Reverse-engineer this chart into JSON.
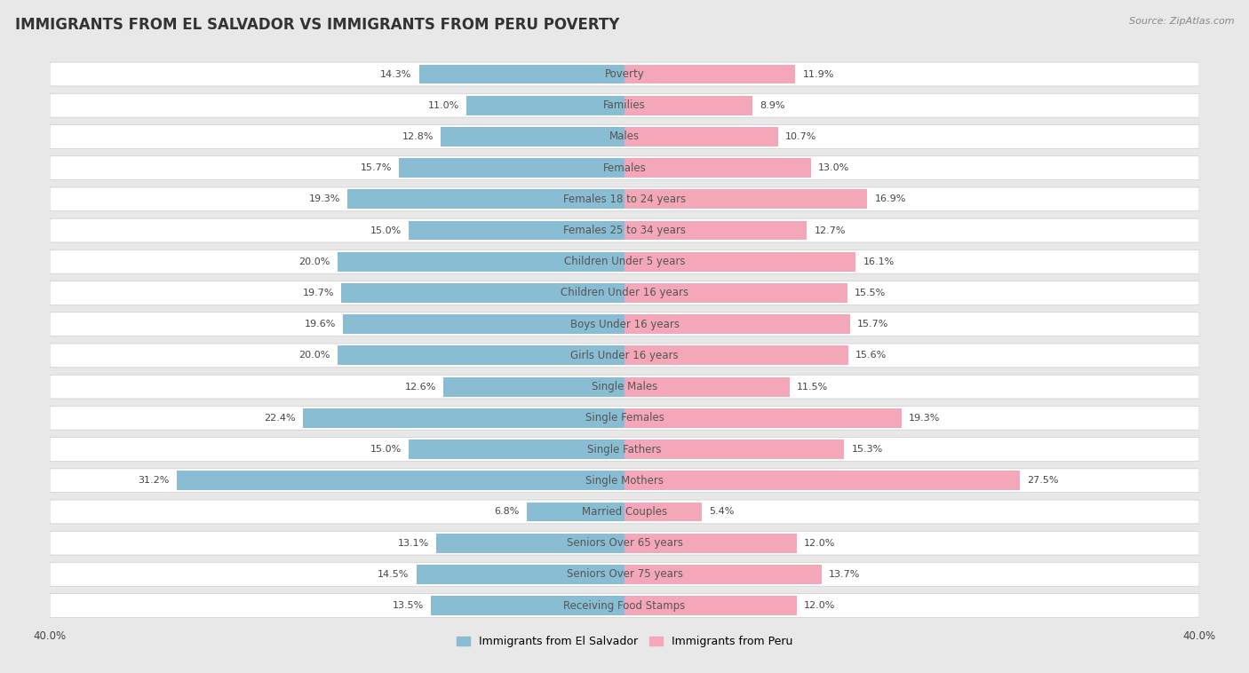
{
  "title": "IMMIGRANTS FROM EL SALVADOR VS IMMIGRANTS FROM PERU POVERTY",
  "source": "Source: ZipAtlas.com",
  "categories": [
    "Poverty",
    "Families",
    "Males",
    "Females",
    "Females 18 to 24 years",
    "Females 25 to 34 years",
    "Children Under 5 years",
    "Children Under 16 years",
    "Boys Under 16 years",
    "Girls Under 16 years",
    "Single Males",
    "Single Females",
    "Single Fathers",
    "Single Mothers",
    "Married Couples",
    "Seniors Over 65 years",
    "Seniors Over 75 years",
    "Receiving Food Stamps"
  ],
  "el_salvador": [
    14.3,
    11.0,
    12.8,
    15.7,
    19.3,
    15.0,
    20.0,
    19.7,
    19.6,
    20.0,
    12.6,
    22.4,
    15.0,
    31.2,
    6.8,
    13.1,
    14.5,
    13.5
  ],
  "peru": [
    11.9,
    8.9,
    10.7,
    13.0,
    16.9,
    12.7,
    16.1,
    15.5,
    15.7,
    15.6,
    11.5,
    19.3,
    15.3,
    27.5,
    5.4,
    12.0,
    13.7,
    12.0
  ],
  "el_salvador_color": "#89bdd3",
  "peru_color": "#f4a7b9",
  "el_salvador_label": "Immigrants from El Salvador",
  "peru_label": "Immigrants from Peru",
  "xlim": 40.0,
  "page_bg": "#e8e8e8",
  "row_bg": "#ffffff",
  "bar_height": 0.62,
  "title_fontsize": 12,
  "label_fontsize": 8.5,
  "value_fontsize": 8.0,
  "axis_label_fontsize": 8.5
}
